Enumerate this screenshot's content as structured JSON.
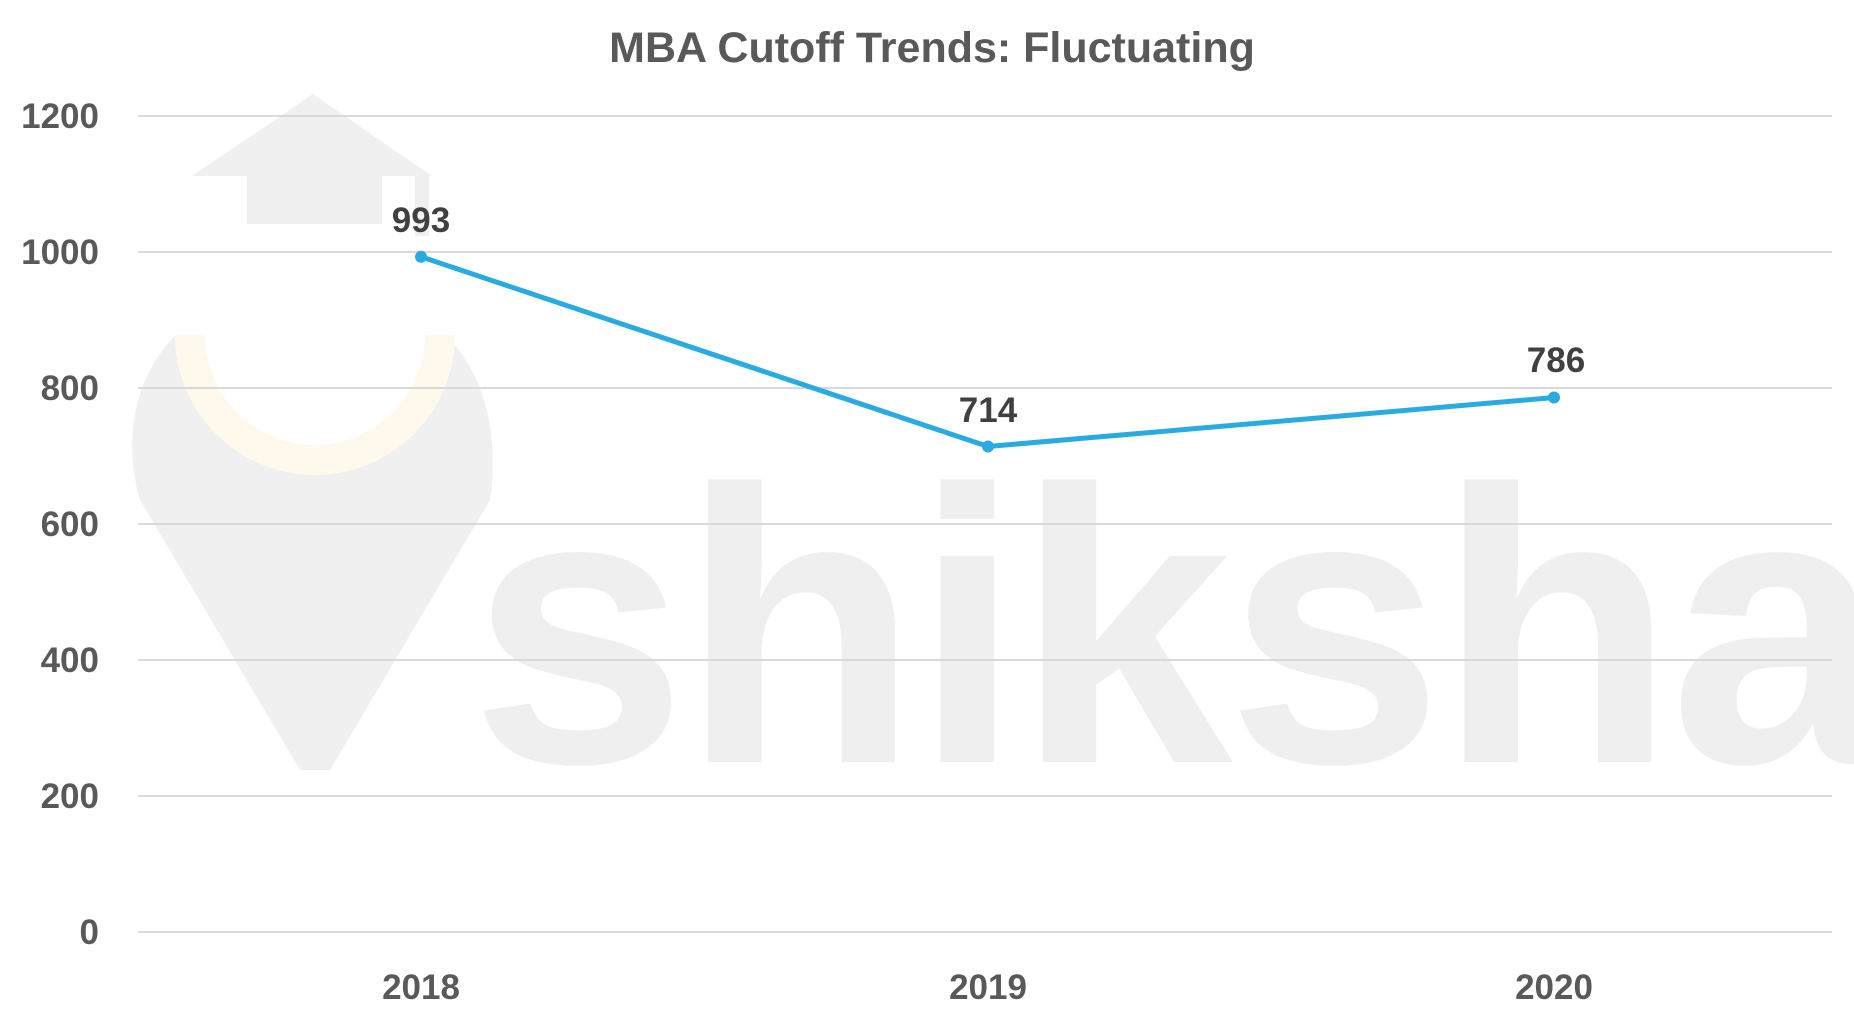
{
  "watermark": {
    "text": "shiksha",
    "icon": "graduation-cap-logo-icon"
  },
  "colors": {
    "series_line": "#29abe2",
    "title": "#595959",
    "axis_text": "#595959",
    "data_label": "#404040",
    "gridline": "#d9d9d9",
    "watermark": "#efefef"
  },
  "chart_data": {
    "type": "line",
    "title": "MBA Cutoff Trends: Fluctuating",
    "xlabel": "",
    "ylabel": "",
    "categories": [
      "2018",
      "2019",
      "2020"
    ],
    "series": [
      {
        "name": "MBA Cutoff",
        "values": [
          993,
          714,
          786
        ],
        "color": "#29abe2"
      }
    ],
    "data_labels": [
      "993",
      "714",
      "786"
    ],
    "yticks": [
      "0",
      "200",
      "400",
      "600",
      "800",
      "1000",
      "1200"
    ],
    "ylim": [
      0,
      1200
    ],
    "grid": true,
    "legend": "none"
  }
}
